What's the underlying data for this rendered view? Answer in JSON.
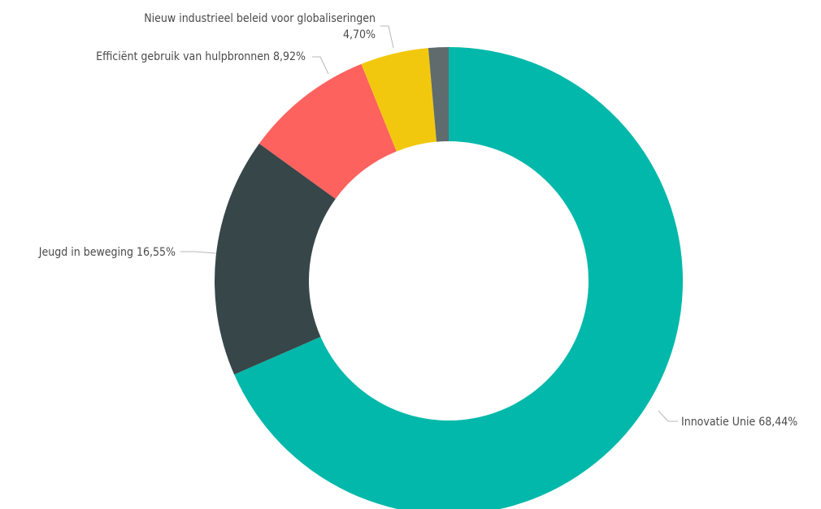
{
  "chart_data": {
    "type": "pie",
    "variant": "donut",
    "title": "",
    "legend": "none",
    "slices": [
      {
        "name": "Innovatie Unie",
        "value": 68.44,
        "display": "68,44%",
        "color": "#01B8AA"
      },
      {
        "name": "Jeugd in beweging",
        "value": 16.55,
        "display": "16,55%",
        "color": "#374649"
      },
      {
        "name": "Efficiënt gebruik van hulpbronnen",
        "value": 8.92,
        "display": "8,92%",
        "color": "#FD625E"
      },
      {
        "name": "Nieuw industrieel beleid voor globaliseringen",
        "value": 4.7,
        "display": "4,70%",
        "color": "#F2C80F"
      },
      {
        "name": "",
        "value": 1.39,
        "display": "",
        "color": "#5F6B6D"
      }
    ]
  }
}
